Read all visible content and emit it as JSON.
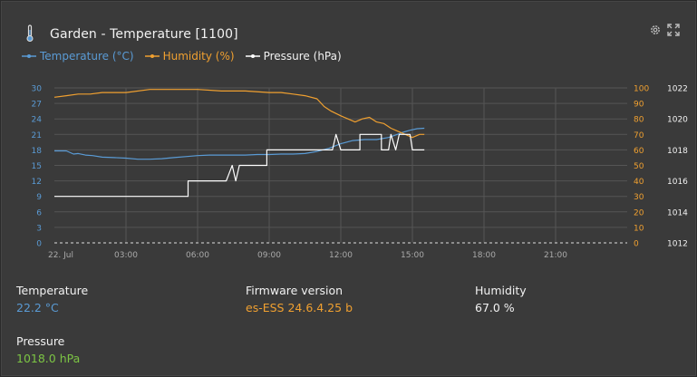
{
  "widget": {
    "title": "Garden - Temperature [1100]",
    "icons": {
      "thermometer": "thermometer-icon",
      "settings": "gear-icon",
      "fullscreen": "fullscreen-icon"
    }
  },
  "legend": [
    {
      "label": "Temperature (°C)",
      "color": "#5a9bd5"
    },
    {
      "label": "Humidity (%)",
      "color": "#f0a030"
    },
    {
      "label": "Pressure (hPa)",
      "color": "#ffffff"
    }
  ],
  "chart_data": {
    "type": "line",
    "x_ticks": [
      "22. Jul",
      "03:00",
      "06:00",
      "09:00",
      "12:00",
      "15:00",
      "18:00",
      "21:00"
    ],
    "x_range_hours": [
      0,
      24
    ],
    "axes": {
      "temperature": {
        "ticks": [
          "30",
          "27",
          "24",
          "21",
          "18",
          "15",
          "12",
          "9",
          "6",
          "3",
          "0"
        ],
        "ylim": [
          0,
          30
        ],
        "color": "#5a9bd5"
      },
      "humidity": {
        "ticks": [
          "100",
          "90",
          "80",
          "70",
          "60",
          "50",
          "40",
          "30",
          "20",
          "10",
          "0"
        ],
        "ylim": [
          0,
          100
        ],
        "color": "#f0a030"
      },
      "pressure": {
        "ticks": [
          "1022",
          "1020",
          "1018",
          "1016",
          "1014",
          "1012"
        ],
        "ylim": [
          1012,
          1022
        ],
        "color": "#ffffff"
      }
    },
    "grid": true,
    "series": [
      {
        "name": "Temperature (°C)",
        "axis": "temperature",
        "color": "#5a9bd5",
        "x": [
          0,
          0.5,
          0.8,
          1.0,
          1.3,
          1.6,
          2.0,
          2.5,
          3.0,
          3.5,
          4.0,
          4.5,
          5.0,
          5.5,
          6.0,
          6.5,
          7.0,
          7.5,
          8.0,
          8.5,
          9.0,
          9.5,
          10.0,
          10.5,
          11.0,
          11.5,
          12.0,
          12.5,
          13.0,
          13.5,
          14.0,
          14.3,
          14.6,
          14.9,
          15.2,
          15.5
        ],
        "y": [
          17.8,
          17.8,
          17.2,
          17.3,
          17.0,
          16.9,
          16.6,
          16.5,
          16.4,
          16.2,
          16.2,
          16.3,
          16.5,
          16.7,
          16.9,
          17.0,
          17.0,
          17.0,
          17.0,
          17.1,
          17.1,
          17.2,
          17.2,
          17.3,
          17.7,
          18.3,
          19.2,
          19.8,
          20.0,
          20.0,
          20.4,
          20.9,
          21.4,
          21.8,
          22.1,
          22.2
        ]
      },
      {
        "name": "Humidity (%)",
        "axis": "humidity",
        "color": "#f0a030",
        "x": [
          0,
          0.5,
          1.0,
          1.5,
          2.0,
          3.0,
          4.0,
          5.0,
          6.0,
          7.0,
          8.0,
          9.0,
          9.5,
          10.0,
          10.5,
          11.0,
          11.3,
          11.6,
          12.0,
          12.3,
          12.6,
          12.9,
          13.2,
          13.5,
          13.8,
          14.1,
          14.4,
          14.7,
          15.0,
          15.3,
          15.5
        ],
        "y": [
          94,
          95,
          96,
          96,
          97,
          97,
          99,
          99,
          99,
          98,
          98,
          97,
          97,
          96,
          95,
          93,
          88,
          85,
          82,
          80,
          78,
          80,
          81,
          78,
          77,
          74,
          72,
          70,
          68,
          70,
          70
        ]
      },
      {
        "name": "Pressure (hPa)",
        "axis": "pressure",
        "color": "#ffffff",
        "x": [
          0,
          5.6,
          5.6,
          7.2,
          7.45,
          7.6,
          7.75,
          7.9,
          8.9,
          8.9,
          11.65,
          11.8,
          12.0,
          12.8,
          12.8,
          13.7,
          13.7,
          14.0,
          14.1,
          14.3,
          14.45,
          14.9,
          15.0,
          15.5
        ],
        "y": [
          1015,
          1015,
          1016,
          1016,
          1017,
          1016,
          1017,
          1017,
          1017,
          1018,
          1018,
          1019,
          1018,
          1018,
          1019,
          1019,
          1018,
          1018,
          1019,
          1018,
          1019,
          1019,
          1018,
          1018
        ]
      }
    ]
  },
  "stats": {
    "temperature": {
      "label": "Temperature",
      "value": "22.2 °C",
      "color": "#5a9bd5"
    },
    "firmware": {
      "label": "Firmware version",
      "value": "es-ESS 24.6.4.25 b",
      "color": "#f0a030"
    },
    "humidity": {
      "label": "Humidity",
      "value": "67.0 %",
      "color": "#f2f2f2"
    },
    "pressure": {
      "label": "Pressure",
      "value": "1018.0 hPa",
      "color": "#7cc444"
    }
  }
}
